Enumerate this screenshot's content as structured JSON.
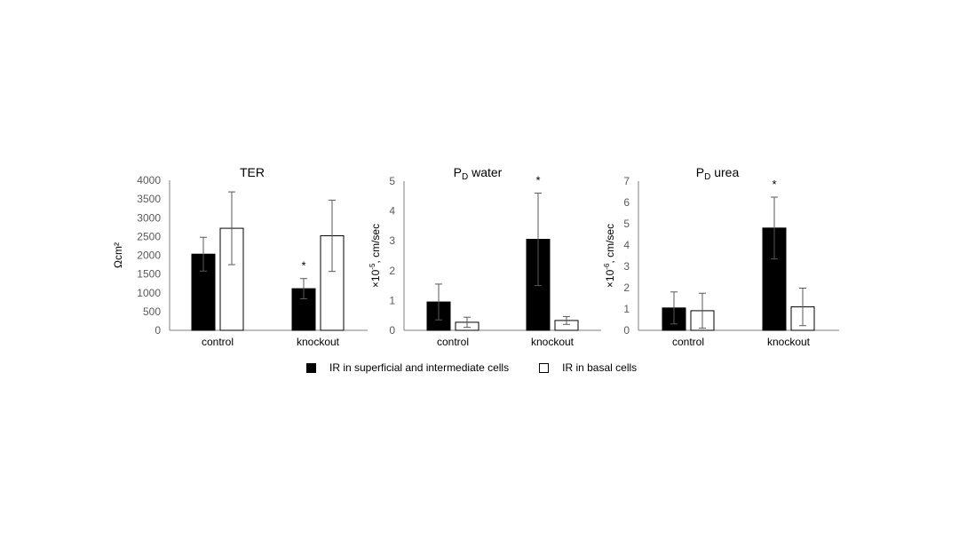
{
  "chart_data": [
    {
      "type": "bar",
      "title": "TER",
      "ylabel": "Ωcm²",
      "ylim": [
        0,
        4000
      ],
      "yticks": [
        0,
        500,
        1000,
        1500,
        2000,
        2500,
        3000,
        3500,
        4000
      ],
      "categories": [
        "control",
        "knockout"
      ],
      "series": [
        {
          "name": "IR in superficial and intermediate cells",
          "values": [
            2030,
            1110
          ],
          "errors": [
            450,
            270
          ],
          "color": "#000000"
        },
        {
          "name": "IR in basal cells",
          "values": [
            2720,
            2520
          ],
          "errors": [
            970,
            950
          ],
          "color": "#ffffff"
        }
      ],
      "annotations": [
        {
          "category": "knockout",
          "series": 0,
          "text": "*"
        }
      ]
    },
    {
      "type": "bar",
      "title_main": "P",
      "title_sub": "D",
      "title_rest": " water",
      "ylabel_pre": "×10",
      "ylabel_sup": "-5",
      "ylabel_post": ", cm/sec",
      "ylim": [
        0,
        5
      ],
      "yticks": [
        0,
        1,
        2,
        3,
        4,
        5
      ],
      "categories": [
        "control",
        "knockout"
      ],
      "series": [
        {
          "name": "IR in superficial and intermediate cells",
          "values": [
            0.95,
            3.05
          ],
          "errors": [
            0.6,
            1.55
          ],
          "color": "#000000"
        },
        {
          "name": "IR in basal cells",
          "values": [
            0.27,
            0.33
          ],
          "errors": [
            0.17,
            0.13
          ],
          "color": "#ffffff"
        }
      ],
      "annotations": [
        {
          "category": "knockout",
          "series": 0,
          "text": "*"
        }
      ]
    },
    {
      "type": "bar",
      "title_main": "P",
      "title_sub": "D",
      "title_rest": " urea",
      "ylabel_pre": "×10",
      "ylabel_sup": "-6",
      "ylabel_post": ", cm/sec",
      "ylim": [
        0,
        7
      ],
      "yticks": [
        0,
        1,
        2,
        3,
        4,
        5,
        6,
        7
      ],
      "categories": [
        "control",
        "knockout"
      ],
      "series": [
        {
          "name": "IR in superficial and intermediate cells",
          "values": [
            1.05,
            4.8
          ],
          "errors": [
            0.75,
            1.45
          ],
          "color": "#000000"
        },
        {
          "name": "IR in basal cells",
          "values": [
            0.92,
            1.1
          ],
          "errors": [
            0.82,
            0.88
          ],
          "color": "#ffffff"
        }
      ],
      "annotations": [
        {
          "category": "knockout",
          "series": 0,
          "text": "*"
        }
      ]
    }
  ],
  "legend": {
    "items": [
      {
        "label": "IR in superficial and intermediate cells",
        "color": "#000000"
      },
      {
        "label": "IR in basal cells",
        "color": "#ffffff"
      }
    ]
  }
}
